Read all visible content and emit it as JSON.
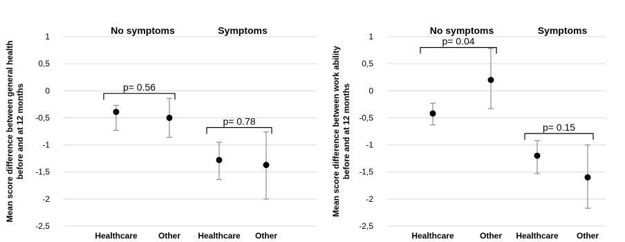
{
  "chart_data": [
    {
      "type": "scatter",
      "ylabel": [
        "Mean score difference between general health",
        "before and at 12 months"
      ],
      "ylim": [
        -2.5,
        1
      ],
      "yticks": [
        1,
        0.5,
        0,
        -0.5,
        -1,
        -1.5,
        -2,
        -2.5
      ],
      "ytick_labels": [
        "1",
        "0,5",
        "0",
        "-0,5",
        "-1",
        "-1,5",
        "-2",
        "-2,5"
      ],
      "grid": true,
      "groups": [
        {
          "title": "No symptoms",
          "p_value": "p= 0.56"
        },
        {
          "title": "Symptoms",
          "p_value": "p= 0.78"
        }
      ],
      "categories": [
        "Healthcare",
        "Other",
        "Healthcare",
        "Other"
      ],
      "points": [
        {
          "category": "Healthcare",
          "group": 0,
          "mean": -0.39,
          "low": -0.73,
          "high": -0.27
        },
        {
          "category": "Other",
          "group": 0,
          "mean": -0.5,
          "low": -0.86,
          "high": -0.14
        },
        {
          "category": "Healthcare",
          "group": 1,
          "mean": -1.28,
          "low": -1.64,
          "high": -0.95
        },
        {
          "category": "Other",
          "group": 1,
          "mean": -1.37,
          "low": -2.0,
          "high": -0.76
        }
      ],
      "brackets": [
        {
          "group": 0,
          "y": -0.05
        },
        {
          "group": 1,
          "y": -0.68
        }
      ]
    },
    {
      "type": "scatter",
      "ylabel": [
        "Mean score difference between work ability",
        "before and at 12 months"
      ],
      "ylim": [
        -2.5,
        1
      ],
      "yticks": [
        1,
        0.5,
        0,
        -0.5,
        -1,
        -1.5,
        -2,
        -2.5
      ],
      "ytick_labels": [
        "1",
        "0,5",
        "0",
        "-0,5",
        "-1",
        "-1,5",
        "-2",
        "-2,5"
      ],
      "grid": true,
      "groups": [
        {
          "title": "No symptoms",
          "p_value": "p= 0.04"
        },
        {
          "title": "Symptoms",
          "p_value": "p= 0.15"
        }
      ],
      "categories": [
        "Healthcare",
        "Other",
        "Healthcare",
        "Other"
      ],
      "points": [
        {
          "category": "Healthcare",
          "group": 0,
          "mean": -0.42,
          "low": -0.63,
          "high": -0.23
        },
        {
          "category": "Other",
          "group": 0,
          "mean": 0.2,
          "low": -0.33,
          "high": 0.78
        },
        {
          "category": "Healthcare",
          "group": 1,
          "mean": -1.2,
          "low": -1.53,
          "high": -0.92
        },
        {
          "category": "Other",
          "group": 1,
          "mean": -1.6,
          "low": -2.17,
          "high": -1.0
        }
      ],
      "brackets": [
        {
          "group": 0,
          "y": 0.8
        },
        {
          "group": 1,
          "y": -0.79
        }
      ]
    }
  ]
}
